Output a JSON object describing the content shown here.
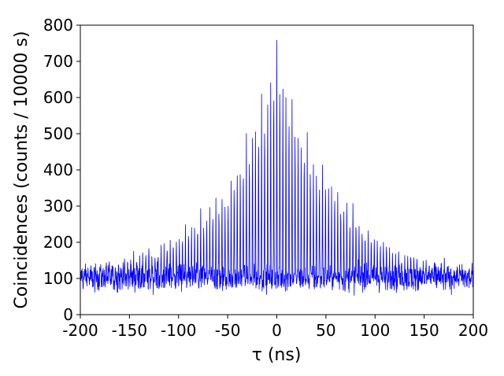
{
  "chart_data": {
    "type": "line",
    "title": "",
    "xlabel": "τ (ns)",
    "ylabel": "Coincidences (counts / 10000 s)",
    "xlim": [
      -200,
      200
    ],
    "ylim": [
      0,
      800
    ],
    "xticks": [
      -200,
      -150,
      -100,
      -50,
      0,
      50,
      100,
      150,
      200
    ],
    "yticks": [
      0,
      100,
      200,
      300,
      400,
      500,
      600,
      700,
      800
    ],
    "grid": false,
    "legend": "none",
    "series": [
      {
        "color": "#0000ff",
        "background_level": 100,
        "background_noise": 18,
        "peak_spacing_ns": 3.1,
        "envelope": [
          [
            -200,
            125
          ],
          [
            -175,
            135
          ],
          [
            -150,
            160
          ],
          [
            -125,
            185
          ],
          [
            -100,
            225
          ],
          [
            -75,
            280
          ],
          [
            -50,
            350
          ],
          [
            -40,
            430
          ],
          [
            -25,
            520
          ],
          [
            -10,
            660
          ],
          [
            0,
            760
          ],
          [
            10,
            660
          ],
          [
            25,
            520
          ],
          [
            40,
            430
          ],
          [
            50,
            400
          ],
          [
            75,
            300
          ],
          [
            100,
            225
          ],
          [
            125,
            180
          ],
          [
            150,
            150
          ],
          [
            175,
            130
          ],
          [
            200,
            120
          ]
        ]
      }
    ]
  }
}
